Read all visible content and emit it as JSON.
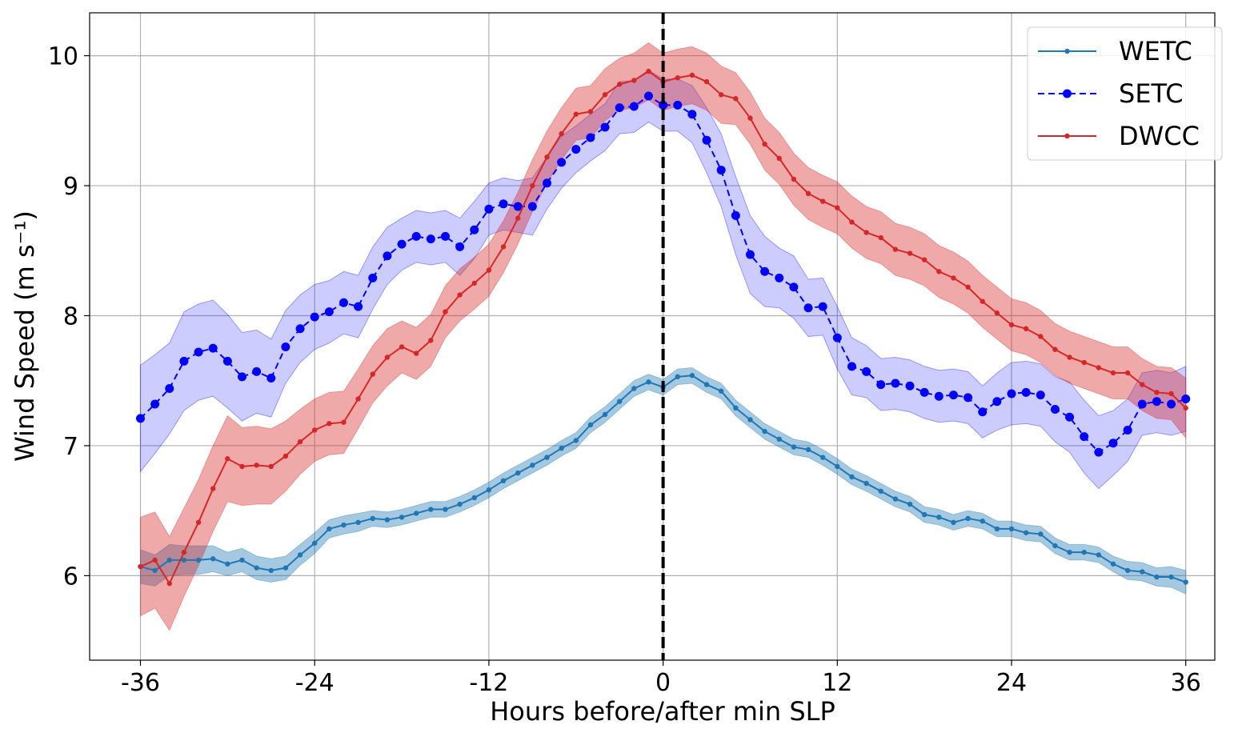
{
  "chart_data": {
    "type": "line",
    "title": "",
    "xlabel": "Hours before/after min SLP",
    "ylabel": "Wind Speed (m s⁻¹)",
    "xlim": [
      -39.5,
      38.0
    ],
    "ylim": [
      5.35,
      10.33
    ],
    "xticks": [
      -36,
      -24,
      -12,
      0,
      12,
      24,
      36
    ],
    "xtick_labels": [
      "-36",
      "-24",
      "-12",
      "0",
      "12",
      "24",
      "36"
    ],
    "yticks": [
      6,
      7,
      8,
      9,
      10
    ],
    "ytick_labels": [
      "6",
      "7",
      "8",
      "9",
      "10"
    ],
    "grid": true,
    "legend_position": "top-right",
    "vline": {
      "x": 0,
      "style": "dashed",
      "color": "#000000"
    },
    "x_start": -36,
    "x_step": 1,
    "series": [
      {
        "name": "WETC",
        "color": "#1f77b4",
        "fill_opacity": 0.4,
        "dashed": false,
        "marker_r": 3.2,
        "line_width": 2,
        "values": [
          6.07,
          6.04,
          6.12,
          6.12,
          6.12,
          6.13,
          6.09,
          6.12,
          6.06,
          6.04,
          6.06,
          6.16,
          6.25,
          6.36,
          6.39,
          6.41,
          6.44,
          6.43,
          6.45,
          6.48,
          6.51,
          6.51,
          6.55,
          6.6,
          6.66,
          6.73,
          6.79,
          6.85,
          6.91,
          6.98,
          7.04,
          7.16,
          7.24,
          7.34,
          7.44,
          7.49,
          7.45,
          7.53,
          7.54,
          7.47,
          7.42,
          7.29,
          7.2,
          7.11,
          7.05,
          6.99,
          6.97,
          6.91,
          6.84,
          6.76,
          6.71,
          6.65,
          6.59,
          6.55,
          6.47,
          6.45,
          6.41,
          6.44,
          6.42,
          6.36,
          6.36,
          6.33,
          6.32,
          6.23,
          6.18,
          6.18,
          6.16,
          6.09,
          6.04,
          6.03,
          5.99,
          5.99,
          5.95
        ],
        "spread": [
          0.13,
          0.12,
          0.12,
          0.11,
          0.11,
          0.1,
          0.09,
          0.09,
          0.09,
          0.09,
          0.09,
          0.08,
          0.08,
          0.07,
          0.07,
          0.07,
          0.06,
          0.06,
          0.06,
          0.06,
          0.06,
          0.06,
          0.06,
          0.06,
          0.06,
          0.06,
          0.06,
          0.06,
          0.06,
          0.06,
          0.06,
          0.06,
          0.06,
          0.06,
          0.06,
          0.06,
          0.06,
          0.06,
          0.06,
          0.06,
          0.06,
          0.06,
          0.06,
          0.06,
          0.06,
          0.06,
          0.06,
          0.06,
          0.06,
          0.06,
          0.06,
          0.06,
          0.06,
          0.06,
          0.06,
          0.06,
          0.06,
          0.06,
          0.06,
          0.06,
          0.06,
          0.06,
          0.06,
          0.06,
          0.06,
          0.06,
          0.06,
          0.06,
          0.07,
          0.07,
          0.07,
          0.08,
          0.09
        ]
      },
      {
        "name": "SETC",
        "color": "#0000ff",
        "fill_opacity": 0.2,
        "dashed": true,
        "marker_r": 5.5,
        "line_width": 2,
        "values": [
          7.21,
          7.32,
          7.44,
          7.65,
          7.72,
          7.75,
          7.65,
          7.53,
          7.57,
          7.52,
          7.76,
          7.9,
          7.99,
          8.03,
          8.1,
          8.07,
          8.29,
          8.46,
          8.55,
          8.61,
          8.59,
          8.61,
          8.53,
          8.66,
          8.82,
          8.86,
          8.84,
          8.84,
          9.02,
          9.18,
          9.28,
          9.37,
          9.45,
          9.6,
          9.61,
          9.69,
          9.62,
          9.62,
          9.55,
          9.35,
          9.12,
          8.77,
          8.47,
          8.34,
          8.29,
          8.22,
          8.06,
          8.07,
          7.83,
          7.61,
          7.57,
          7.47,
          7.48,
          7.46,
          7.41,
          7.38,
          7.39,
          7.37,
          7.26,
          7.34,
          7.4,
          7.41,
          7.39,
          7.28,
          7.22,
          7.07,
          6.95,
          7.02,
          7.12,
          7.32,
          7.34,
          7.32,
          7.36
        ],
        "spread": [
          0.41,
          0.38,
          0.35,
          0.38,
          0.37,
          0.37,
          0.36,
          0.34,
          0.32,
          0.3,
          0.28,
          0.26,
          0.25,
          0.24,
          0.24,
          0.24,
          0.24,
          0.22,
          0.2,
          0.2,
          0.2,
          0.2,
          0.22,
          0.22,
          0.2,
          0.2,
          0.2,
          0.22,
          0.2,
          0.2,
          0.18,
          0.18,
          0.18,
          0.2,
          0.2,
          0.2,
          0.2,
          0.2,
          0.22,
          0.25,
          0.28,
          0.3,
          0.3,
          0.27,
          0.23,
          0.24,
          0.22,
          0.22,
          0.24,
          0.22,
          0.2,
          0.2,
          0.2,
          0.2,
          0.2,
          0.2,
          0.2,
          0.2,
          0.2,
          0.22,
          0.24,
          0.24,
          0.24,
          0.25,
          0.27,
          0.28,
          0.28,
          0.25,
          0.24,
          0.24,
          0.24,
          0.24,
          0.25
        ]
      },
      {
        "name": "DWCC",
        "color": "#d62728",
        "fill_opacity": 0.4,
        "dashed": false,
        "marker_r": 3.2,
        "line_width": 2,
        "values": [
          6.07,
          6.12,
          5.94,
          6.18,
          6.41,
          6.67,
          6.9,
          6.84,
          6.85,
          6.84,
          6.92,
          7.03,
          7.12,
          7.17,
          7.18,
          7.36,
          7.55,
          7.68,
          7.76,
          7.71,
          7.81,
          8.03,
          8.16,
          8.25,
          8.35,
          8.53,
          8.75,
          9.0,
          9.22,
          9.4,
          9.55,
          9.57,
          9.7,
          9.78,
          9.81,
          9.88,
          9.8,
          9.83,
          9.85,
          9.8,
          9.7,
          9.67,
          9.52,
          9.32,
          9.21,
          9.05,
          8.94,
          8.88,
          8.83,
          8.72,
          8.64,
          8.6,
          8.51,
          8.48,
          8.43,
          8.34,
          8.29,
          8.22,
          8.11,
          8.02,
          7.93,
          7.9,
          7.84,
          7.74,
          7.68,
          7.64,
          7.6,
          7.56,
          7.56,
          7.47,
          7.41,
          7.4,
          7.29
        ],
        "spread": [
          0.38,
          0.37,
          0.36,
          0.34,
          0.33,
          0.33,
          0.33,
          0.3,
          0.3,
          0.29,
          0.27,
          0.25,
          0.24,
          0.24,
          0.24,
          0.23,
          0.22,
          0.22,
          0.2,
          0.2,
          0.2,
          0.2,
          0.2,
          0.2,
          0.2,
          0.2,
          0.2,
          0.2,
          0.2,
          0.2,
          0.2,
          0.2,
          0.2,
          0.2,
          0.21,
          0.22,
          0.22,
          0.22,
          0.22,
          0.22,
          0.22,
          0.2,
          0.2,
          0.2,
          0.2,
          0.2,
          0.2,
          0.2,
          0.2,
          0.2,
          0.2,
          0.2,
          0.2,
          0.2,
          0.2,
          0.2,
          0.2,
          0.2,
          0.2,
          0.2,
          0.2,
          0.2,
          0.2,
          0.2,
          0.2,
          0.2,
          0.2,
          0.2,
          0.2,
          0.2,
          0.2,
          0.2,
          0.23
        ]
      }
    ]
  }
}
